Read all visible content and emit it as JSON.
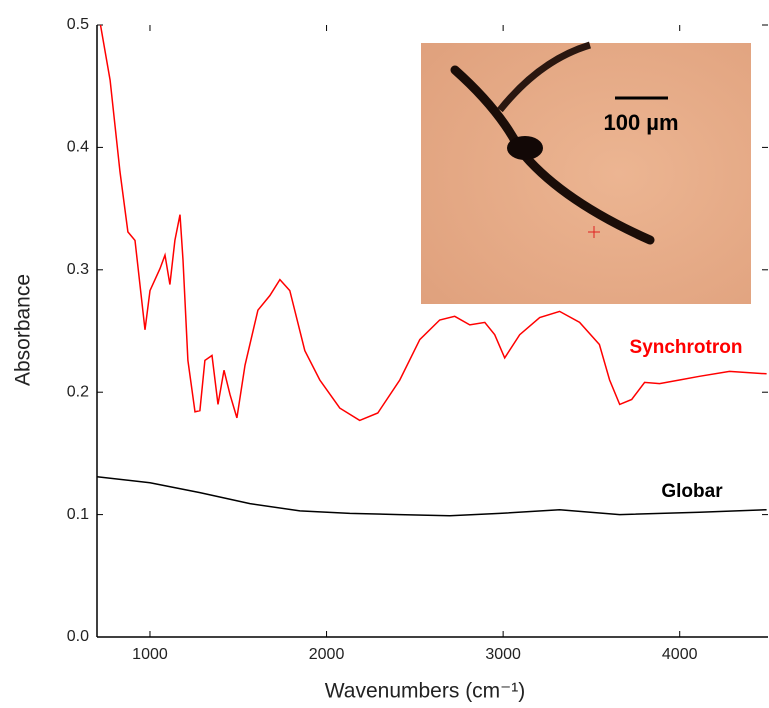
{
  "chart_data": {
    "type": "line",
    "xlabel": "Wavenumbers (cm⁻¹)",
    "ylabel": "Absorbance",
    "xlim": [
      700,
      4500
    ],
    "ylim": [
      0,
      0.5
    ],
    "xticks": [
      1000,
      2000,
      3000,
      4000
    ],
    "yticks": [
      {
        "value": 0,
        "label": "0.0"
      },
      0.1,
      0.2,
      0.3,
      0.4,
      0.5
    ],
    "annotations": [
      "Synchrotron",
      "Globar",
      "100 µm"
    ],
    "series": [
      {
        "name": "Synchrotron",
        "color": "#ff0000",
        "x": [
          720,
          774,
          830,
          875,
          915,
          972,
          1000,
          1057,
          1085,
          1113,
          1141,
          1170,
          1187,
          1215,
          1255,
          1283,
          1311,
          1351,
          1385,
          1419,
          1453,
          1492,
          1538,
          1611,
          1679,
          1736,
          1792,
          1877,
          1962,
          2075,
          2188,
          2290,
          2415,
          2528,
          2641,
          2726,
          2811,
          2896,
          2952,
          3009,
          3094,
          3207,
          3320,
          3433,
          3545,
          3603,
          3660,
          3728,
          3801,
          3886,
          3999,
          4112,
          4282,
          4492
        ],
        "values": [
          0.5,
          0.455,
          0.38,
          0.331,
          0.324,
          0.251,
          0.283,
          0.301,
          0.312,
          0.288,
          0.324,
          0.345,
          0.308,
          0.226,
          0.184,
          0.185,
          0.226,
          0.23,
          0.19,
          0.218,
          0.198,
          0.179,
          0.222,
          0.267,
          0.279,
          0.292,
          0.283,
          0.234,
          0.21,
          0.187,
          0.177,
          0.183,
          0.21,
          0.243,
          0.259,
          0.262,
          0.255,
          0.257,
          0.247,
          0.228,
          0.247,
          0.261,
          0.266,
          0.257,
          0.239,
          0.21,
          0.19,
          0.194,
          0.208,
          0.207,
          0.21,
          0.213,
          0.217,
          0.215
        ]
      },
      {
        "name": "Globar",
        "color": "#000000",
        "x": [
          700,
          1000,
          1283,
          1566,
          1849,
          2132,
          2415,
          2698,
          2981,
          3320,
          3660,
          4112,
          4492
        ],
        "values": [
          0.131,
          0.126,
          0.118,
          0.109,
          0.103,
          0.101,
          0.1,
          0.099,
          0.101,
          0.104,
          0.1,
          0.102,
          0.104
        ]
      }
    ]
  }
}
